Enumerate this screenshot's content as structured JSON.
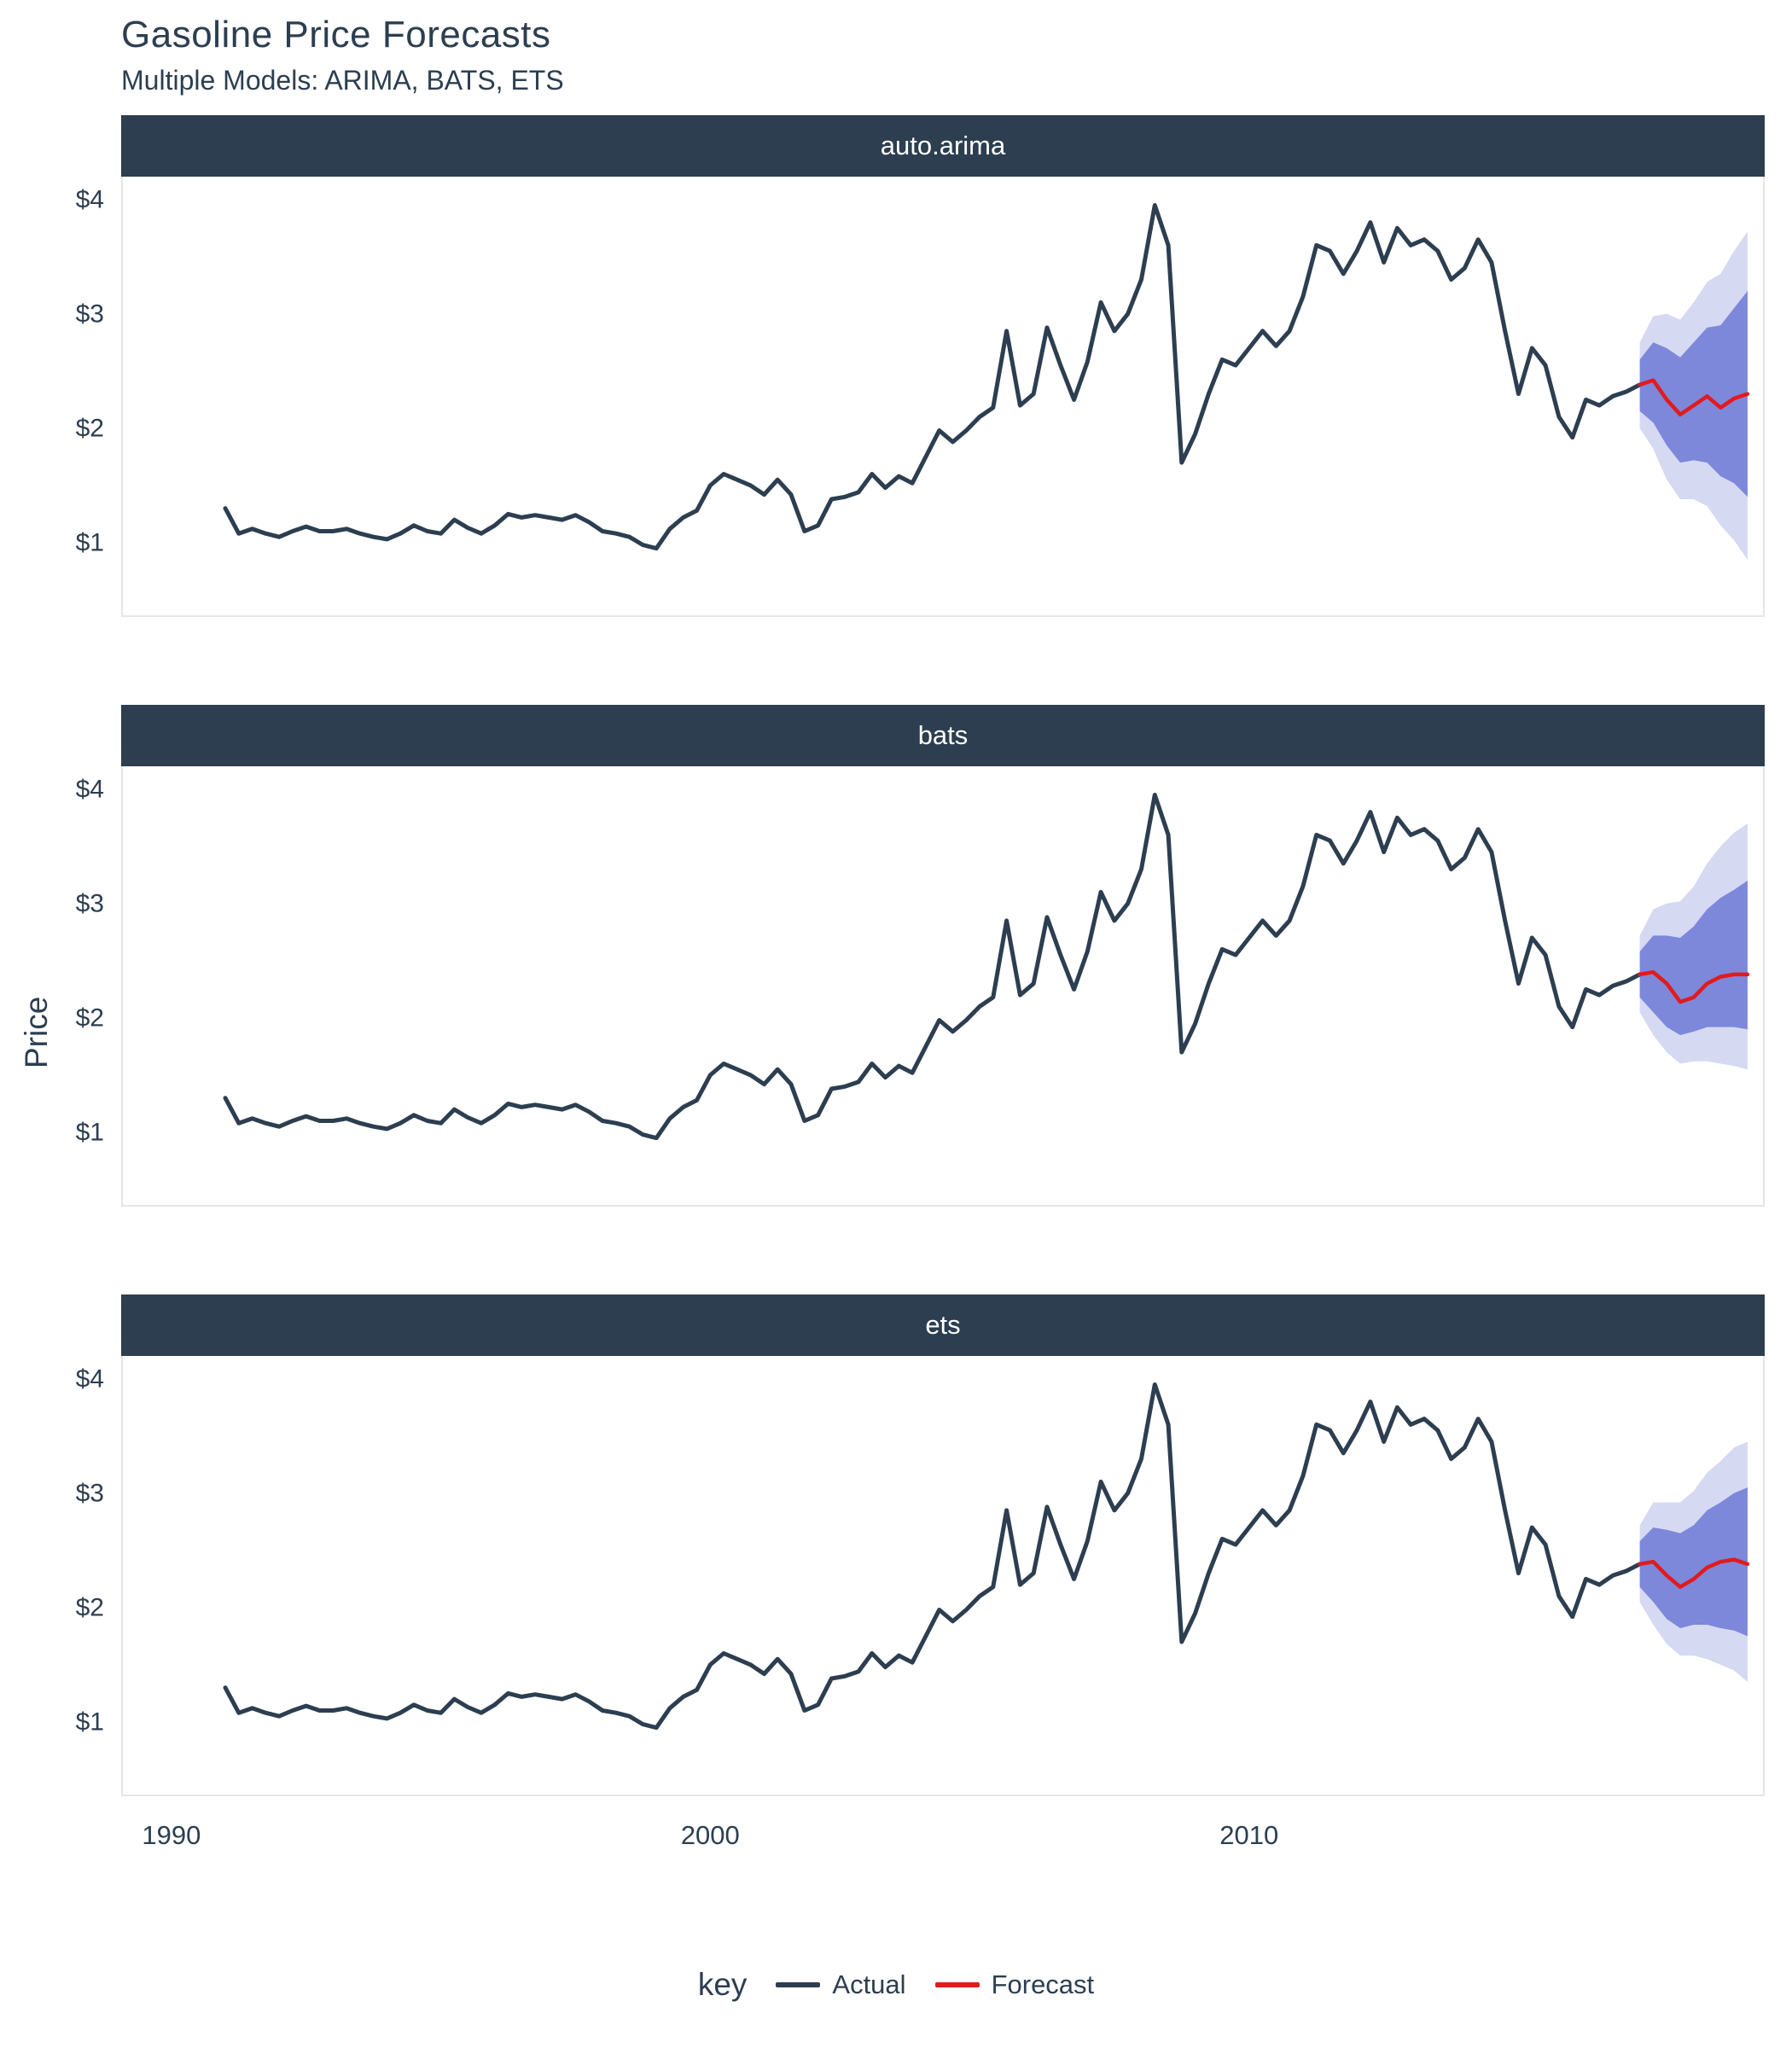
{
  "title": "Gasoline Price Forecasts",
  "subtitle": "Multiple Models: ARIMA, BATS, ETS",
  "y_axis": {
    "label": "Price"
  },
  "legend": {
    "title": "key",
    "items": [
      {
        "label": "Actual",
        "color": "#2c3e50"
      },
      {
        "label": "Forecast",
        "color": "#e31a1c"
      }
    ]
  },
  "chart_data": {
    "type": "line",
    "facets_note": "three facet panels sharing the same actual series; each has its own forecast with 80% and 95% prediction ribbons",
    "colors": {
      "actual": "#2c3e50",
      "forecast": "#e31a1c",
      "band80": "#7d88da",
      "band95": "#d5d9f2",
      "strip_bg": "#2c3e50",
      "strip_text": "#ffffff"
    },
    "axes": {
      "x_domain": [
        1989.1,
        2019.6
      ],
      "y_domain": [
        0.35,
        4.2
      ],
      "x_ticks": [
        {
          "label": "1990",
          "value": 1990
        },
        {
          "label": "2000",
          "value": 2000
        },
        {
          "label": "2010",
          "value": 2010
        }
      ],
      "y_ticks": [
        {
          "label": "$4",
          "value": 4
        },
        {
          "label": "$3",
          "value": 3
        },
        {
          "label": "$2",
          "value": 2
        },
        {
          "label": "$1",
          "value": 1
        }
      ],
      "grid": "off",
      "legend_position": "bottom"
    },
    "actual": {
      "name": "Actual",
      "start": 1991.0,
      "step": 0.25,
      "values": [
        1.3,
        1.08,
        1.12,
        1.08,
        1.05,
        1.1,
        1.14,
        1.1,
        1.1,
        1.12,
        1.08,
        1.05,
        1.03,
        1.08,
        1.15,
        1.1,
        1.08,
        1.2,
        1.13,
        1.08,
        1.15,
        1.25,
        1.22,
        1.24,
        1.22,
        1.2,
        1.24,
        1.18,
        1.1,
        1.08,
        1.05,
        0.98,
        0.95,
        1.12,
        1.22,
        1.28,
        1.5,
        1.6,
        1.55,
        1.5,
        1.42,
        1.55,
        1.42,
        1.1,
        1.15,
        1.38,
        1.4,
        1.44,
        1.6,
        1.48,
        1.58,
        1.52,
        1.75,
        1.98,
        1.88,
        1.98,
        2.1,
        2.18,
        2.85,
        2.2,
        2.3,
        2.88,
        2.55,
        2.25,
        2.58,
        3.1,
        2.85,
        3.0,
        3.3,
        3.95,
        3.6,
        1.7,
        1.95,
        2.3,
        2.6,
        2.55,
        2.7,
        2.85,
        2.72,
        2.85,
        3.15,
        3.6,
        3.55,
        3.35,
        3.55,
        3.8,
        3.45,
        3.75,
        3.6,
        3.65,
        3.55,
        3.3,
        3.4,
        3.65,
        3.45,
        2.85,
        2.3,
        2.7,
        2.55,
        2.1,
        1.92,
        2.25,
        2.2,
        2.28,
        2.32,
        2.38
      ]
    },
    "facets": [
      {
        "name": "auto.arima",
        "forecast": {
          "name": "Forecast",
          "start": 2017.25,
          "step": 0.25,
          "mean": [
            2.38,
            2.42,
            2.25,
            2.12,
            2.2,
            2.28,
            2.18,
            2.26,
            2.3
          ],
          "lo80": [
            2.15,
            2.05,
            1.85,
            1.7,
            1.72,
            1.7,
            1.58,
            1.52,
            1.4
          ],
          "hi80": [
            2.6,
            2.75,
            2.7,
            2.62,
            2.75,
            2.88,
            2.9,
            3.05,
            3.2
          ],
          "lo95": [
            2.0,
            1.82,
            1.55,
            1.38,
            1.38,
            1.32,
            1.15,
            1.02,
            0.85
          ],
          "hi95": [
            2.75,
            2.98,
            3.0,
            2.95,
            3.1,
            3.28,
            3.35,
            3.55,
            3.72
          ]
        }
      },
      {
        "name": "bats",
        "forecast": {
          "name": "Forecast",
          "start": 2017.25,
          "step": 0.25,
          "mean": [
            2.38,
            2.4,
            2.3,
            2.14,
            2.18,
            2.3,
            2.36,
            2.38,
            2.38
          ],
          "lo80": [
            2.18,
            2.05,
            1.92,
            1.85,
            1.88,
            1.92,
            1.92,
            1.92,
            1.9
          ],
          "hi80": [
            2.58,
            2.72,
            2.72,
            2.7,
            2.8,
            2.95,
            3.05,
            3.12,
            3.2
          ],
          "lo95": [
            2.05,
            1.85,
            1.7,
            1.6,
            1.62,
            1.62,
            1.6,
            1.58,
            1.55
          ],
          "hi95": [
            2.72,
            2.95,
            3.0,
            3.02,
            3.15,
            3.35,
            3.5,
            3.62,
            3.7
          ]
        }
      },
      {
        "name": "ets",
        "forecast": {
          "name": "Forecast",
          "start": 2017.25,
          "step": 0.25,
          "mean": [
            2.38,
            2.4,
            2.28,
            2.18,
            2.25,
            2.35,
            2.4,
            2.42,
            2.38
          ],
          "lo80": [
            2.18,
            2.05,
            1.9,
            1.82,
            1.85,
            1.85,
            1.82,
            1.8,
            1.75
          ],
          "hi80": [
            2.58,
            2.7,
            2.68,
            2.65,
            2.72,
            2.85,
            2.92,
            3.0,
            3.05
          ],
          "lo95": [
            2.05,
            1.85,
            1.68,
            1.58,
            1.58,
            1.55,
            1.5,
            1.45,
            1.35
          ],
          "hi95": [
            2.72,
            2.92,
            2.92,
            2.92,
            3.02,
            3.18,
            3.28,
            3.4,
            3.45
          ]
        }
      }
    ]
  }
}
